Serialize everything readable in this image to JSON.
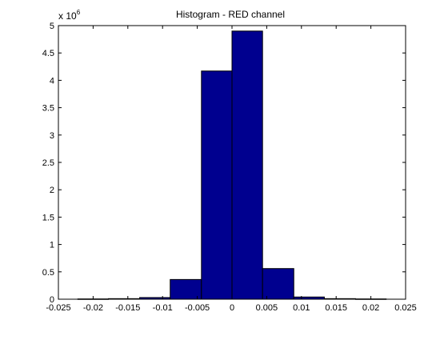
{
  "chart_data": {
    "type": "bar",
    "title": "Histogram - RED channel",
    "xlabel": "",
    "ylabel": "",
    "y_exponent_label": "x 10",
    "y_exponent_power": "6",
    "xlim": [
      -0.025,
      0.025
    ],
    "ylim": [
      0,
      5
    ],
    "grid": false,
    "x_ticks": [
      -0.025,
      -0.02,
      -0.015,
      -0.01,
      -0.005,
      0,
      0.005,
      0.01,
      0.015,
      0.02,
      0.025
    ],
    "x_tick_labels": [
      "-0.025",
      "-0.02",
      "-0.015",
      "-0.01",
      "-0.005",
      "0",
      "0.005",
      "0.01",
      "0.015",
      "0.02",
      "0.025"
    ],
    "y_ticks": [
      0,
      0.5,
      1,
      1.5,
      2,
      2.5,
      3,
      3.5,
      4,
      4.5,
      5
    ],
    "y_tick_labels": [
      "0",
      "0.5",
      "1",
      "1.5",
      "2",
      "2.5",
      "3",
      "3.5",
      "4",
      "4.5",
      "5"
    ],
    "bin_edges": [
      -0.0222,
      -0.0178,
      -0.0133,
      -0.0089,
      -0.0044,
      0,
      0.0044,
      0.0089,
      0.0133,
      0.0178,
      0.0222
    ],
    "values": [
      0.005,
      0.01,
      0.03,
      0.36,
      4.17,
      4.9,
      0.56,
      0.04,
      0.01,
      0.005
    ],
    "value_multiplier": 1000000,
    "bar_color": "#00008f",
    "bar_edge_color": "#000000"
  }
}
